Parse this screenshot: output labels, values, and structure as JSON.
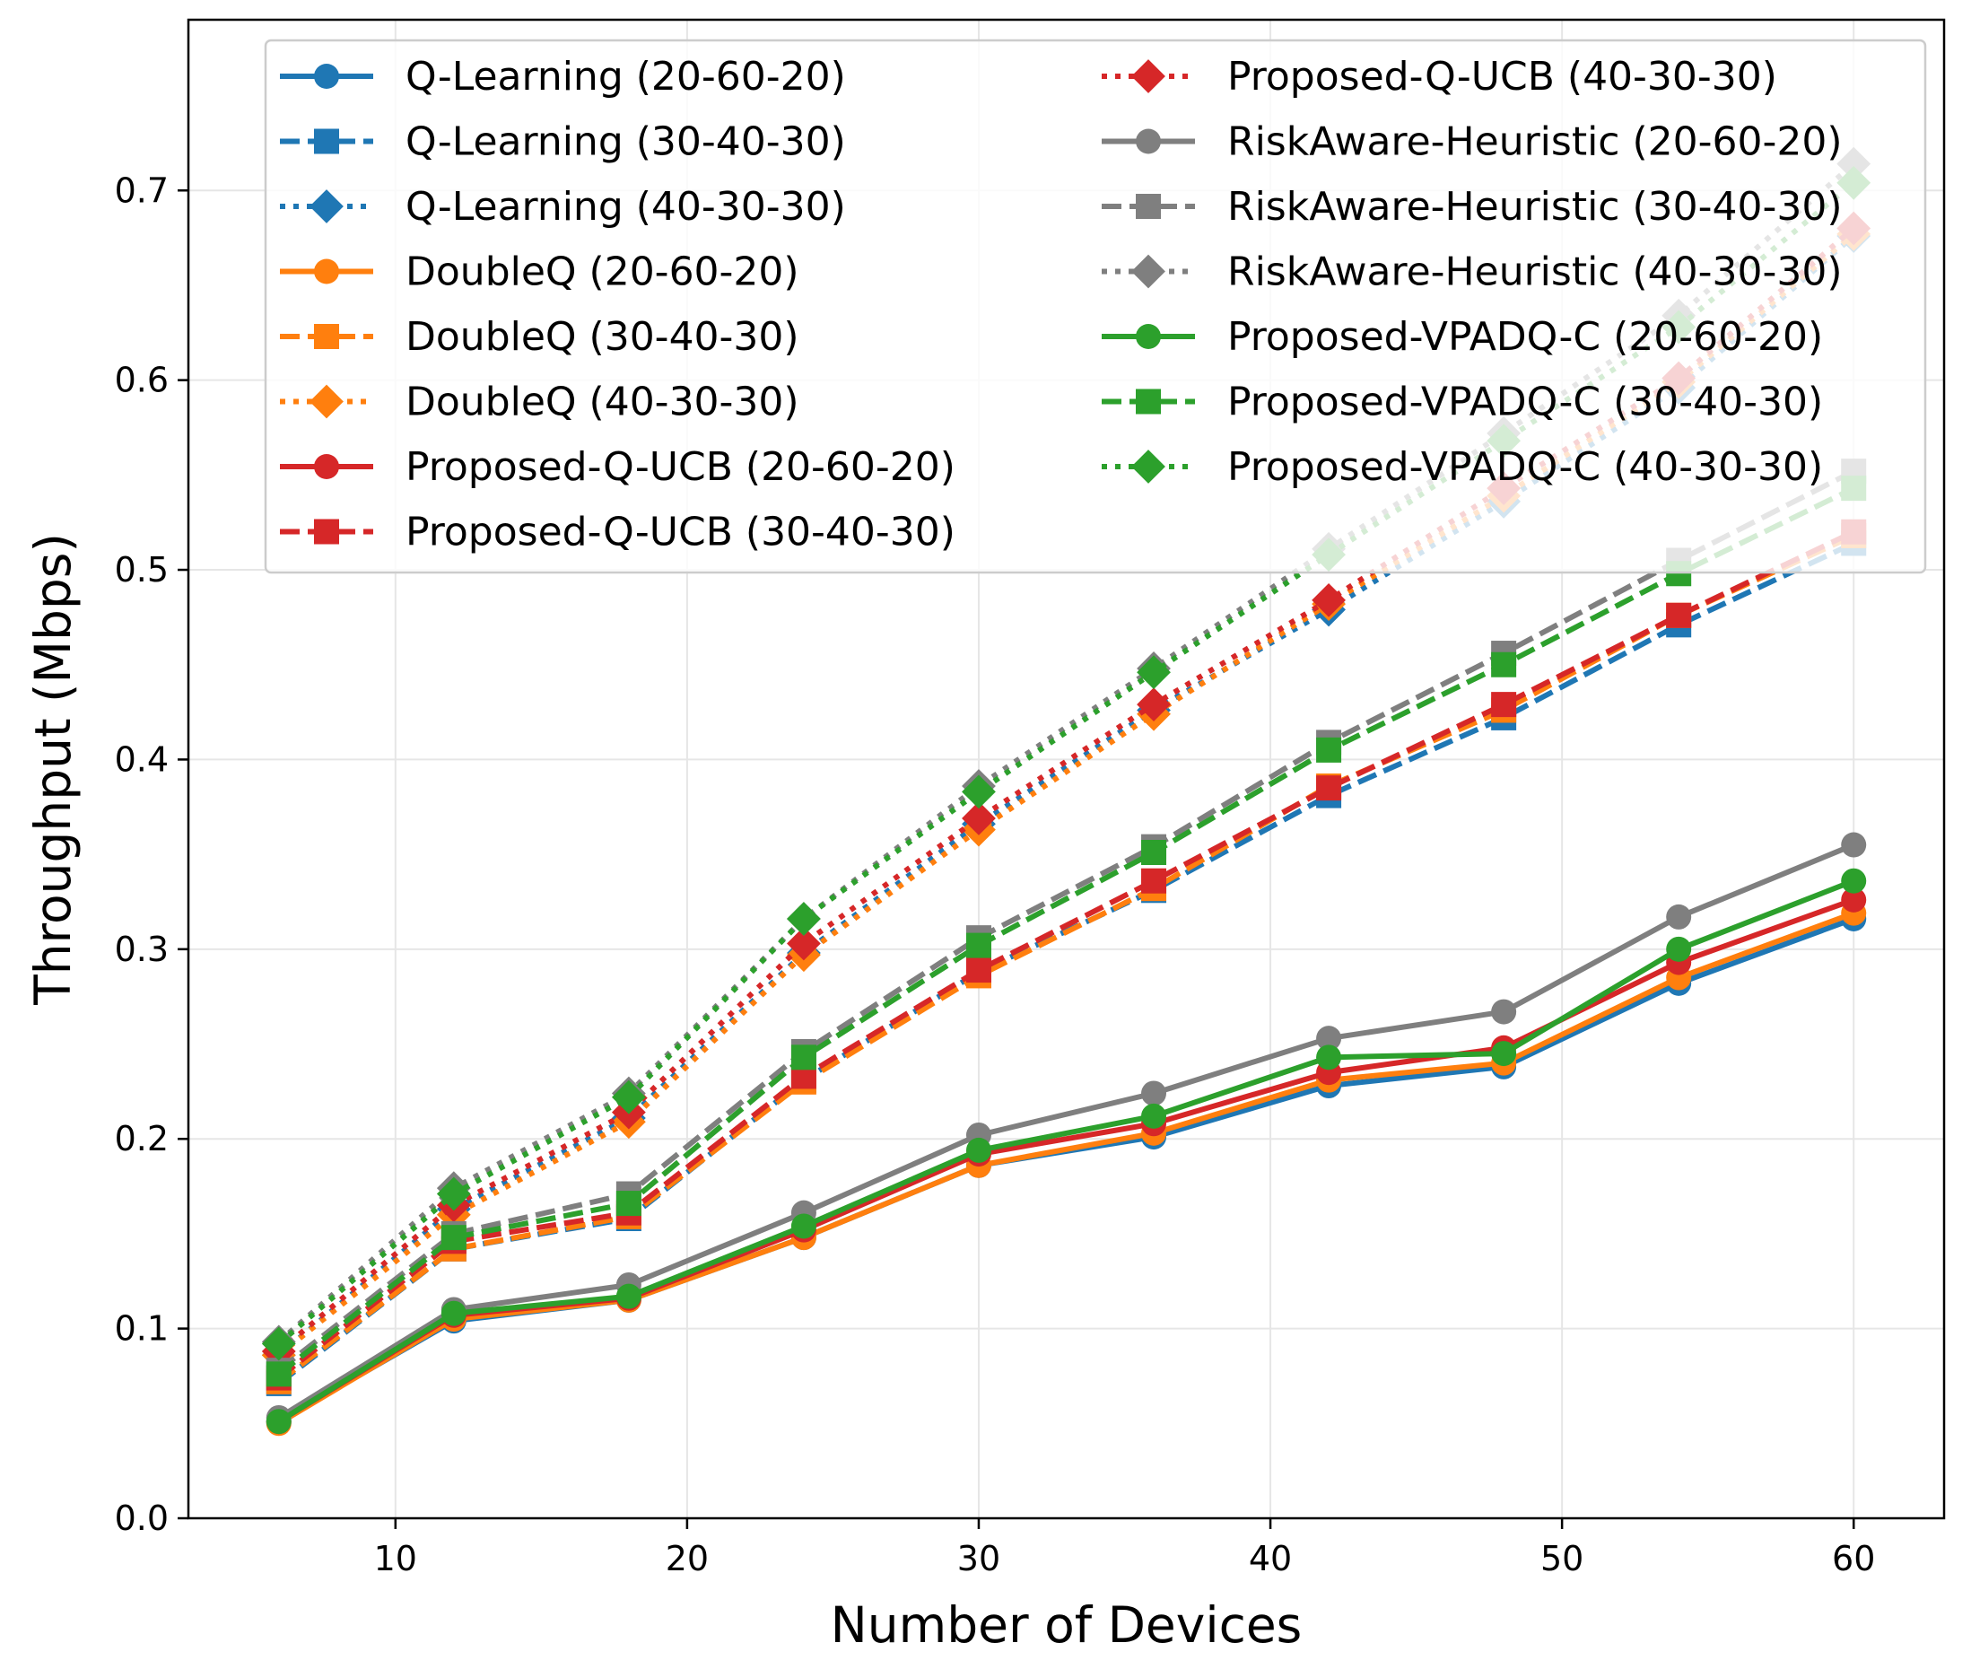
{
  "chart_data": {
    "type": "line",
    "title": "",
    "xlabel": "Number of Devices",
    "ylabel": "Throughput (Mbps)",
    "xlim": [
      2.9,
      63.1
    ],
    "ylim": [
      0.0,
      0.79
    ],
    "xticks": [
      10,
      20,
      30,
      40,
      50,
      60
    ],
    "yticks": [
      0.0,
      0.1,
      0.2,
      0.3,
      0.4,
      0.5,
      0.6,
      0.7
    ],
    "ytick_labels": [
      "0.0",
      "0.1",
      "0.2",
      "0.3",
      "0.4",
      "0.5",
      "0.6",
      "0.7"
    ],
    "grid": true,
    "legend_position": "top",
    "x": [
      6,
      12,
      18,
      24,
      30,
      36,
      42,
      48,
      54,
      60
    ],
    "series": [
      {
        "name": "Q-Learning (20-60-20)",
        "color": "#1f77b4",
        "style": "solid",
        "marker": "circle",
        "values": [
          0.051,
          0.104,
          0.115,
          0.148,
          0.186,
          0.201,
          0.228,
          0.238,
          0.282,
          0.316
        ]
      },
      {
        "name": "Q-Learning (30-40-30)",
        "color": "#1f77b4",
        "style": "dashed",
        "marker": "square",
        "values": [
          0.071,
          0.142,
          0.158,
          0.231,
          0.288,
          0.331,
          0.381,
          0.422,
          0.471,
          0.514
        ]
      },
      {
        "name": "Q-Learning (40-30-30)",
        "color": "#1f77b4",
        "style": "dotted",
        "marker": "diamond",
        "values": [
          0.086,
          0.163,
          0.211,
          0.298,
          0.366,
          0.426,
          0.479,
          0.536,
          0.596,
          0.676
        ]
      },
      {
        "name": "DoubleQ (20-60-20)",
        "color": "#ff7f0e",
        "style": "solid",
        "marker": "circle",
        "values": [
          0.05,
          0.105,
          0.115,
          0.148,
          0.186,
          0.203,
          0.231,
          0.24,
          0.285,
          0.319
        ]
      },
      {
        "name": "DoubleQ (30-40-30)",
        "color": "#ff7f0e",
        "style": "dashed",
        "marker": "square",
        "values": [
          0.072,
          0.142,
          0.159,
          0.23,
          0.286,
          0.332,
          0.386,
          0.426,
          0.476,
          0.518
        ]
      },
      {
        "name": "DoubleQ (40-30-30)",
        "color": "#ff7f0e",
        "style": "dotted",
        "marker": "diamond",
        "values": [
          0.086,
          0.16,
          0.209,
          0.297,
          0.363,
          0.424,
          0.482,
          0.539,
          0.599,
          0.677
        ]
      },
      {
        "name": "Proposed-Q-UCB (20-60-20)",
        "color": "#d62728",
        "style": "solid",
        "marker": "circle",
        "values": [
          0.051,
          0.107,
          0.116,
          0.152,
          0.192,
          0.208,
          0.235,
          0.248,
          0.293,
          0.326
        ]
      },
      {
        "name": "Proposed-Q-UCB (30-40-30)",
        "color": "#d62728",
        "style": "dashed",
        "marker": "square",
        "values": [
          0.074,
          0.146,
          0.161,
          0.233,
          0.289,
          0.336,
          0.385,
          0.429,
          0.476,
          0.52
        ]
      },
      {
        "name": "Proposed-Q-UCB (40-30-30)",
        "color": "#d62728",
        "style": "dotted",
        "marker": "diamond",
        "values": [
          0.088,
          0.165,
          0.214,
          0.303,
          0.369,
          0.429,
          0.484,
          0.543,
          0.601,
          0.68
        ]
      },
      {
        "name": "RiskAware-Heuristic (20-60-20)",
        "color": "#7f7f7f",
        "style": "solid",
        "marker": "circle",
        "values": [
          0.053,
          0.11,
          0.123,
          0.161,
          0.202,
          0.224,
          0.253,
          0.267,
          0.317,
          0.355
        ]
      },
      {
        "name": "RiskAware-Heuristic (30-40-30)",
        "color": "#7f7f7f",
        "style": "dashed",
        "marker": "square",
        "values": [
          0.078,
          0.15,
          0.171,
          0.246,
          0.306,
          0.354,
          0.409,
          0.456,
          0.505,
          0.552
        ]
      },
      {
        "name": "RiskAware-Heuristic (40-30-30)",
        "color": "#7f7f7f",
        "style": "dotted",
        "marker": "diamond",
        "values": [
          0.093,
          0.174,
          0.224,
          0.316,
          0.386,
          0.448,
          0.511,
          0.572,
          0.634,
          0.714
        ]
      },
      {
        "name": "Proposed-VPADQ-C (20-60-20)",
        "color": "#2ca02c",
        "style": "solid",
        "marker": "circle",
        "values": [
          0.051,
          0.108,
          0.117,
          0.154,
          0.194,
          0.212,
          0.243,
          0.245,
          0.3,
          0.336
        ]
      },
      {
        "name": "Proposed-VPADQ-C (30-40-30)",
        "color": "#2ca02c",
        "style": "dashed",
        "marker": "square",
        "values": [
          0.076,
          0.148,
          0.166,
          0.243,
          0.302,
          0.351,
          0.405,
          0.45,
          0.498,
          0.543
        ]
      },
      {
        "name": "Proposed-VPADQ-C (40-30-30)",
        "color": "#2ca02c",
        "style": "dotted",
        "marker": "diamond",
        "values": [
          0.092,
          0.171,
          0.222,
          0.316,
          0.383,
          0.446,
          0.508,
          0.568,
          0.628,
          0.704
        ]
      }
    ]
  }
}
